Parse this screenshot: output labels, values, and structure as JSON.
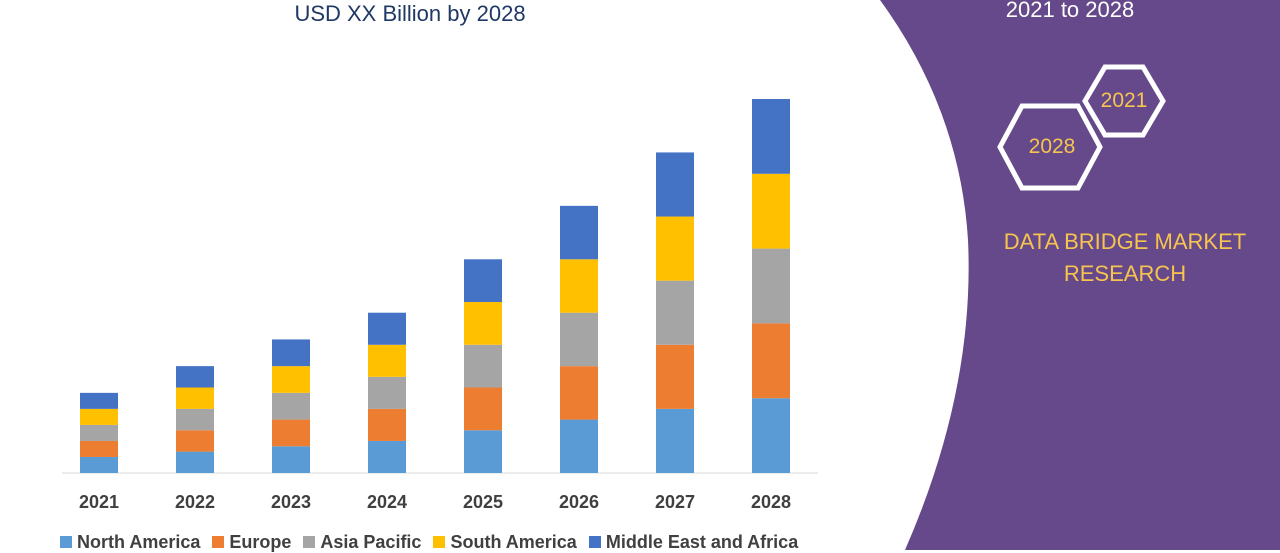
{
  "header": {
    "subtitle": "USD XX Billion by 2028",
    "period": "2021 to 2028"
  },
  "badges": {
    "year_start": "2021",
    "year_end": "2028"
  },
  "brand": {
    "line1": "DATA BRIDGE MARKET",
    "line2": "RESEARCH"
  },
  "colors": {
    "north_america": "#5b9bd5",
    "europe": "#ed7d31",
    "asia_pacific": "#a5a5a5",
    "south_america": "#ffc000",
    "middle_east_africa": "#4472c4",
    "panel": "#66498a",
    "brand_text": "#f6c44f"
  },
  "chart_data": {
    "type": "bar",
    "stacked": true,
    "categories": [
      "2021",
      "2022",
      "2023",
      "2024",
      "2025",
      "2026",
      "2027",
      "2028"
    ],
    "series": [
      {
        "name": "North America",
        "color": "#5b9bd5",
        "values": [
          1.5,
          2,
          2.5,
          3,
          4,
          5,
          6,
          7
        ]
      },
      {
        "name": "Europe",
        "color": "#ed7d31",
        "values": [
          1.5,
          2,
          2.5,
          3,
          4,
          5,
          6,
          7
        ]
      },
      {
        "name": "Asia Pacific",
        "color": "#a5a5a5",
        "values": [
          1.5,
          2,
          2.5,
          3,
          4,
          5,
          6,
          7
        ]
      },
      {
        "name": "South America",
        "color": "#ffc000",
        "values": [
          1.5,
          2,
          2.5,
          3,
          4,
          5,
          6,
          7
        ]
      },
      {
        "name": "Middle East and Africa",
        "color": "#4472c4",
        "values": [
          1.5,
          2,
          2.5,
          3,
          4,
          5,
          6,
          7
        ]
      }
    ],
    "ylim": [
      0,
      35
    ],
    "grid": false,
    "legend": "bottom"
  }
}
